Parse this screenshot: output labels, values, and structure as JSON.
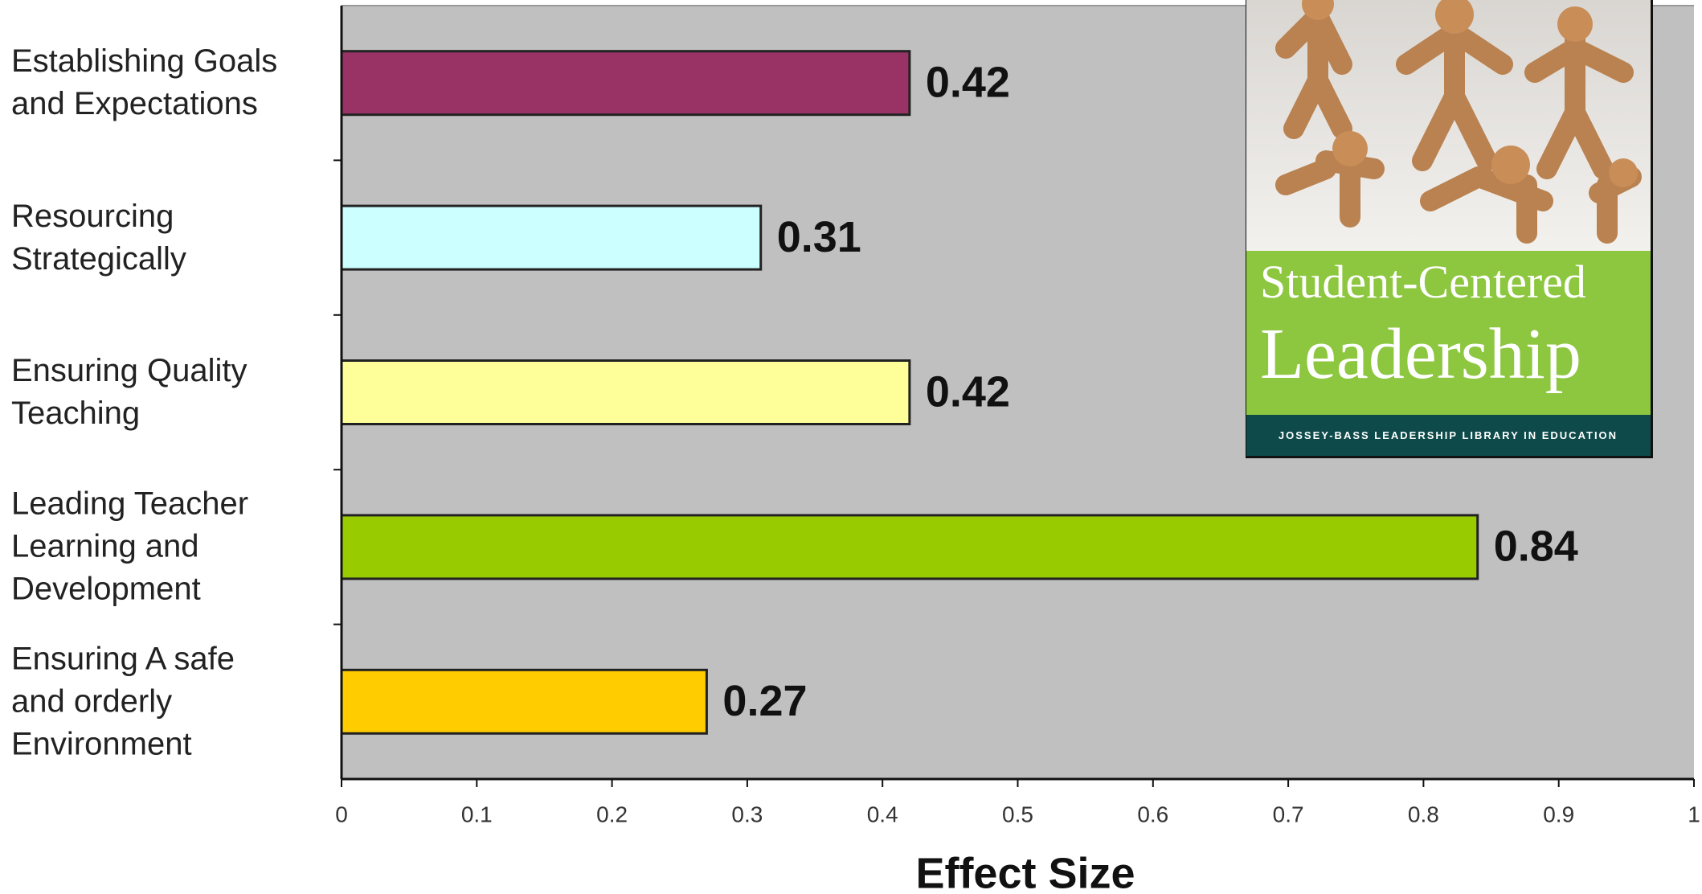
{
  "chart_data": {
    "type": "bar",
    "orientation": "horizontal",
    "categories": [
      "Establishing Goals\nand Expectations",
      "Resourcing\nStrategically",
      "Ensuring Quality\nTeaching",
      "Leading Teacher\nLearning and\nDevelopment",
      "Ensuring A safe\nand orderly\nEnvironment"
    ],
    "values": [
      0.42,
      0.31,
      0.42,
      0.84,
      0.27
    ],
    "colors": [
      "#993366",
      "#ccffff",
      "#ffff99",
      "#99cc00",
      "#ffcc00"
    ],
    "xlabel": "Effect Size",
    "xlim": [
      0,
      1
    ],
    "xticks": [
      0,
      0.1,
      0.2,
      0.3,
      0.4,
      0.5,
      0.6,
      0.7,
      0.8,
      0.9,
      1
    ],
    "grid": false
  },
  "inset": {
    "title_line1": "Student-Centered",
    "title_line2": "Leadership",
    "series_line": "JOSSEY-BASS LEADERSHIP LIBRARY IN EDUCATION"
  }
}
